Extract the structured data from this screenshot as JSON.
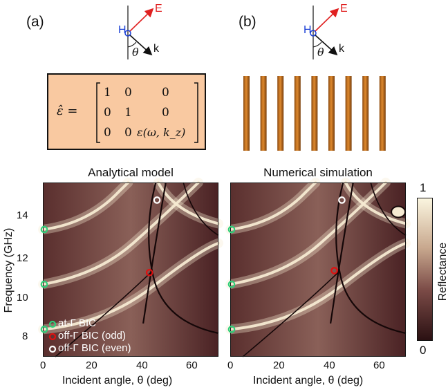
{
  "figure": {
    "panel_a_label": "(a)",
    "panel_b_label": "(b)",
    "schematic": {
      "h_label": "H",
      "e_label": "E",
      "k_label": "k",
      "theta_label": "θ"
    },
    "matrix": {
      "lhs": "ε̂ =",
      "row1": [
        "1",
        "0",
        "0"
      ],
      "row2": [
        "0",
        "1",
        "0"
      ],
      "row3": [
        "0",
        "0",
        "ε(ω, k_z)"
      ]
    },
    "rods_count": 9,
    "colors": {
      "matrix_bg": "#f9c9a1",
      "rod": "#c8731e",
      "h_color": "#1a3fd6",
      "e_color": "#e02020",
      "bic_at_gamma": "#2fd07a",
      "bic_odd": "#e01010",
      "bic_even": "#ffffff",
      "colormap_low": "#2a1012",
      "colormap_high": "#fbf6e0"
    }
  },
  "chart_data": [
    {
      "type": "heatmap",
      "title": "Analytical model",
      "xlabel": "Incident angle, θ (deg)",
      "ylabel": "Frequency (GHz)",
      "xlim": [
        0,
        70
      ],
      "ylim": [
        6.8,
        15.7
      ],
      "xticks": [
        "0",
        "20",
        "40",
        "60"
      ],
      "yticks": [
        "8",
        "10",
        "12",
        "14"
      ],
      "bic_points": [
        {
          "type": "at-Γ BIC",
          "x": 0,
          "y": 8.2
        },
        {
          "type": "at-Γ BIC",
          "x": 0,
          "y": 10.5
        },
        {
          "type": "at-Γ BIC",
          "x": 0,
          "y": 13.3
        },
        {
          "type": "off-Γ BIC (odd)",
          "x": 42.5,
          "y": 11.1
        },
        {
          "type": "off-Γ BIC (even)",
          "x": 45.5,
          "y": 14.8
        }
      ],
      "legend": [
        "at-Γ BIC",
        "off-Γ BIC (odd)",
        "off-Γ BIC (even)"
      ],
      "legend_position": "bottom-left"
    },
    {
      "type": "heatmap",
      "title": "Numerical simulation",
      "xlabel": "Incident angle, θ (deg)",
      "xlim": [
        0,
        70
      ],
      "ylim": [
        6.8,
        15.7
      ],
      "xticks": [
        "0",
        "20",
        "40",
        "60"
      ],
      "bic_points": [
        {
          "type": "at-Γ BIC",
          "x": 0,
          "y": 8.2
        },
        {
          "type": "at-Γ BIC",
          "x": 0,
          "y": 10.5
        },
        {
          "type": "at-Γ BIC",
          "x": 0,
          "y": 13.3
        },
        {
          "type": "off-Γ BIC (odd)",
          "x": 41.5,
          "y": 11.2
        },
        {
          "type": "off-Γ BIC (even)",
          "x": 44.5,
          "y": 14.8
        }
      ]
    }
  ],
  "colorbar": {
    "label": "Reflectance",
    "max_label": "1",
    "min_label": "0"
  }
}
